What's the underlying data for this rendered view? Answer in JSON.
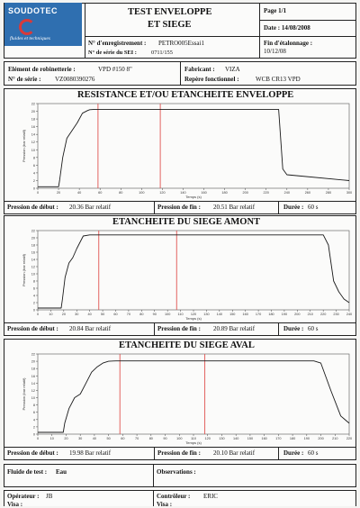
{
  "logo": {
    "brand": "SOUDOTEC",
    "tagline": "fluides et techniques"
  },
  "header": {
    "title_line1": "TEST ENVELOPPE",
    "title_line2": "ET SIEGE",
    "page": "Page 1/1",
    "date": "Date : 14/08/2008",
    "enregistrement_label": "N° d'enregistrement :",
    "enregistrement_value": "PETRO005Essai1",
    "serie_sei_label": "N° de série du SEI :",
    "serie_sei_value": "0711/155",
    "etalonnage_label": "Fin d'étalonnage :",
    "etalonnage_value": "10/12/08"
  },
  "info": {
    "robinetterie_label": "Elément de robinetterie :",
    "robinetterie_value": "VPD #150 8\"",
    "serie_label": "N° de série :",
    "serie_value": "VZ0080390276",
    "fabricant_label": "Fabricant :",
    "fabricant_value": "VIZA",
    "repere_label": "Repère fonctionnel :",
    "repere_value": "WCB CR13 VPD"
  },
  "sections": [
    {
      "title": "RESISTANCE ET/OU ETANCHEITE ENVELOPPE",
      "pressure_start_label": "Pression de début :",
      "pressure_start_value": "20.36 Bar relatif",
      "pressure_end_label": "Pression de fin :",
      "pressure_end_value": "20.51 Bar relatif",
      "duration_label": "Durée :",
      "duration_value": "60 s"
    },
    {
      "title": "ETANCHEITE DU SIEGE AMONT",
      "pressure_start_label": "Pression de début :",
      "pressure_start_value": "20.84 Bar relatif",
      "pressure_end_label": "Pression de fin :",
      "pressure_end_value": "20.89 Bar relatif",
      "duration_label": "Durée :",
      "duration_value": "60 s"
    },
    {
      "title": "ETANCHEITE DU SIEGE AVAL",
      "pressure_start_label": "Pression de début :",
      "pressure_start_value": "19.98 Bar relatif",
      "pressure_end_label": "Pression de fin :",
      "pressure_end_value": "20.10 Bar relatif",
      "duration_label": "Durée :",
      "duration_value": "60 s"
    }
  ],
  "footer": {
    "fluide_label": "Fluide de test :",
    "fluide_value": "Eau",
    "observations_label": "Observations :",
    "operateur_label": "Opérateur :",
    "operateur_value": "JB",
    "controleur_label": "Contrôleur :",
    "controleur_value": "ERIC",
    "visa_label": "Visa :"
  },
  "colors": {
    "marker": "#e0524f",
    "curve": "#1a1a1a",
    "logo_bg": "#2f6fb0"
  },
  "chart_data": [
    {
      "type": "line",
      "title": "RESISTANCE ET/OU ETANCHEITE ENVELOPPE",
      "xlabel": "Temps (s)",
      "ylabel": "Pression (bar relatif)",
      "xlim": [
        0,
        300
      ],
      "ylim": [
        0,
        22
      ],
      "xticks": [
        0,
        20,
        40,
        60,
        80,
        100,
        120,
        140,
        160,
        180,
        200,
        220,
        240,
        260,
        280,
        300
      ],
      "yticks": [
        0,
        2,
        4,
        6,
        8,
        10,
        12,
        14,
        16,
        18,
        20,
        22
      ],
      "markers": [
        58,
        118
      ],
      "x": [
        0,
        20,
        21,
        24,
        28,
        33,
        38,
        43,
        48,
        50,
        55,
        60,
        100,
        150,
        200,
        232,
        236,
        240,
        300
      ],
      "y": [
        0.4,
        0.4,
        2,
        8,
        13,
        15,
        17,
        19.5,
        20.2,
        20.4,
        20.5,
        20.5,
        20.5,
        20.5,
        20.5,
        20.5,
        5,
        3.5,
        2
      ]
    },
    {
      "type": "line",
      "title": "ETANCHEITE DU SIEGE AMONT",
      "xlabel": "Temps (s)",
      "ylabel": "Pression (bar relatif)",
      "xlim": [
        0,
        240
      ],
      "ylim": [
        0,
        22
      ],
      "xticks": [
        0,
        10,
        20,
        30,
        40,
        50,
        60,
        70,
        80,
        90,
        100,
        110,
        120,
        130,
        140,
        150,
        160,
        170,
        180,
        190,
        200,
        210,
        220,
        230,
        240
      ],
      "yticks": [
        0,
        2,
        4,
        6,
        8,
        10,
        12,
        14,
        16,
        18,
        20,
        22
      ],
      "markers": [
        47,
        107
      ],
      "x": [
        0,
        18,
        19,
        21,
        24,
        27,
        30,
        35,
        40,
        60,
        100,
        150,
        200,
        220,
        224,
        228,
        232,
        236,
        240
      ],
      "y": [
        0.5,
        0.5,
        3,
        9,
        13,
        14.5,
        17,
        20.5,
        20.8,
        20.8,
        20.8,
        20.8,
        20.8,
        20.8,
        18,
        8,
        5,
        3,
        2
      ]
    },
    {
      "type": "line",
      "title": "ETANCHEITE DU SIEGE AVAL",
      "xlabel": "Temps (s)",
      "ylabel": "Pression (bar relatif)",
      "xlim": [
        0,
        220
      ],
      "ylim": [
        0,
        22
      ],
      "xticks": [
        0,
        10,
        20,
        30,
        40,
        50,
        60,
        70,
        80,
        90,
        100,
        110,
        120,
        130,
        140,
        150,
        160,
        170,
        180,
        190,
        200,
        210,
        220
      ],
      "yticks": [
        0,
        2,
        4,
        6,
        8,
        10,
        12,
        14,
        16,
        18,
        20,
        22
      ],
      "markers": [
        58,
        118
      ],
      "x": [
        0,
        18,
        19,
        22,
        26,
        30,
        34,
        38,
        42,
        46,
        50,
        55,
        100,
        150,
        195,
        200,
        207,
        214,
        220
      ],
      "y": [
        0.5,
        0.5,
        3,
        7,
        10,
        11,
        14,
        17,
        18.5,
        19.5,
        20,
        20.1,
        20.1,
        20.1,
        20.1,
        19.5,
        12,
        5,
        3
      ]
    }
  ]
}
